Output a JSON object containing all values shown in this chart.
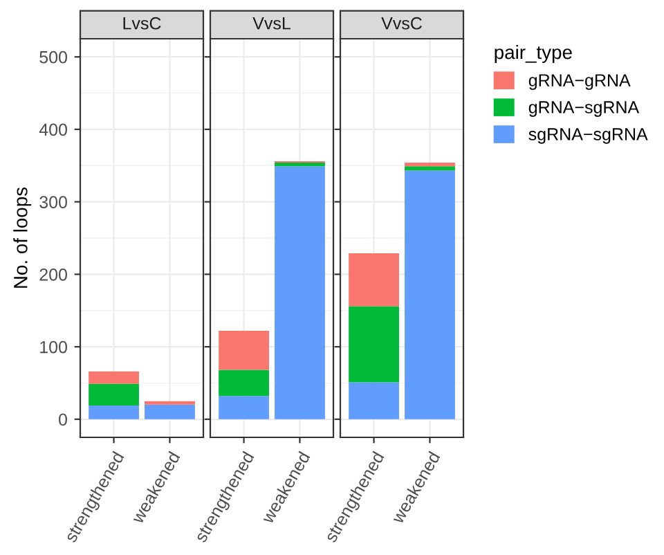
{
  "chart_data": [
    {
      "type": "bar",
      "title": "LvsC",
      "ylabel": "No. of loops",
      "categories": [
        "strengthened",
        "weakened"
      ],
      "stacked": true,
      "ylim": [
        -25,
        525
      ],
      "yticks": [
        0,
        100,
        200,
        300,
        400,
        500
      ],
      "grid": true,
      "legend": "right",
      "legend_title": "pair_type",
      "series": [
        {
          "name": "sgRNA−sgRNA",
          "color": "#619cff",
          "values": [
            19,
            20
          ]
        },
        {
          "name": "gRNA−sgRNA",
          "color": "#00ba38",
          "values": [
            30,
            0
          ]
        },
        {
          "name": "gRNA−gRNA",
          "color": "#f8766d",
          "values": [
            17,
            5
          ]
        }
      ]
    },
    {
      "type": "bar",
      "title": "VvsL",
      "categories": [
        "strengthened",
        "weakened"
      ],
      "stacked": true,
      "ylim": [
        -25,
        525
      ],
      "yticks": [
        0,
        100,
        200,
        300,
        400,
        500
      ],
      "grid": true,
      "tick_labels": "x",
      "series": [
        {
          "color": "#619cff",
          "values": [
            32,
            349
          ]
        },
        {
          "color": "#00ba38",
          "values": [
            36,
            5
          ]
        },
        {
          "color": "#f8766d",
          "values": [
            54,
            2
          ]
        }
      ]
    },
    {
      "type": "bar",
      "title": "VvsC",
      "categories": [
        "strengthened",
        "weakened"
      ],
      "stacked": true,
      "ylim": [
        -25,
        525
      ],
      "yticks": [
        0,
        100,
        200,
        300,
        400,
        500
      ],
      "grid": true,
      "tick_labels": "x",
      "series": [
        {
          "color": "#619cff",
          "values": [
            51,
            343
          ]
        },
        {
          "color": "#00ba38",
          "values": [
            105,
            6
          ]
        },
        {
          "color": "#f8766d",
          "values": [
            73,
            5
          ]
        }
      ]
    }
  ]
}
